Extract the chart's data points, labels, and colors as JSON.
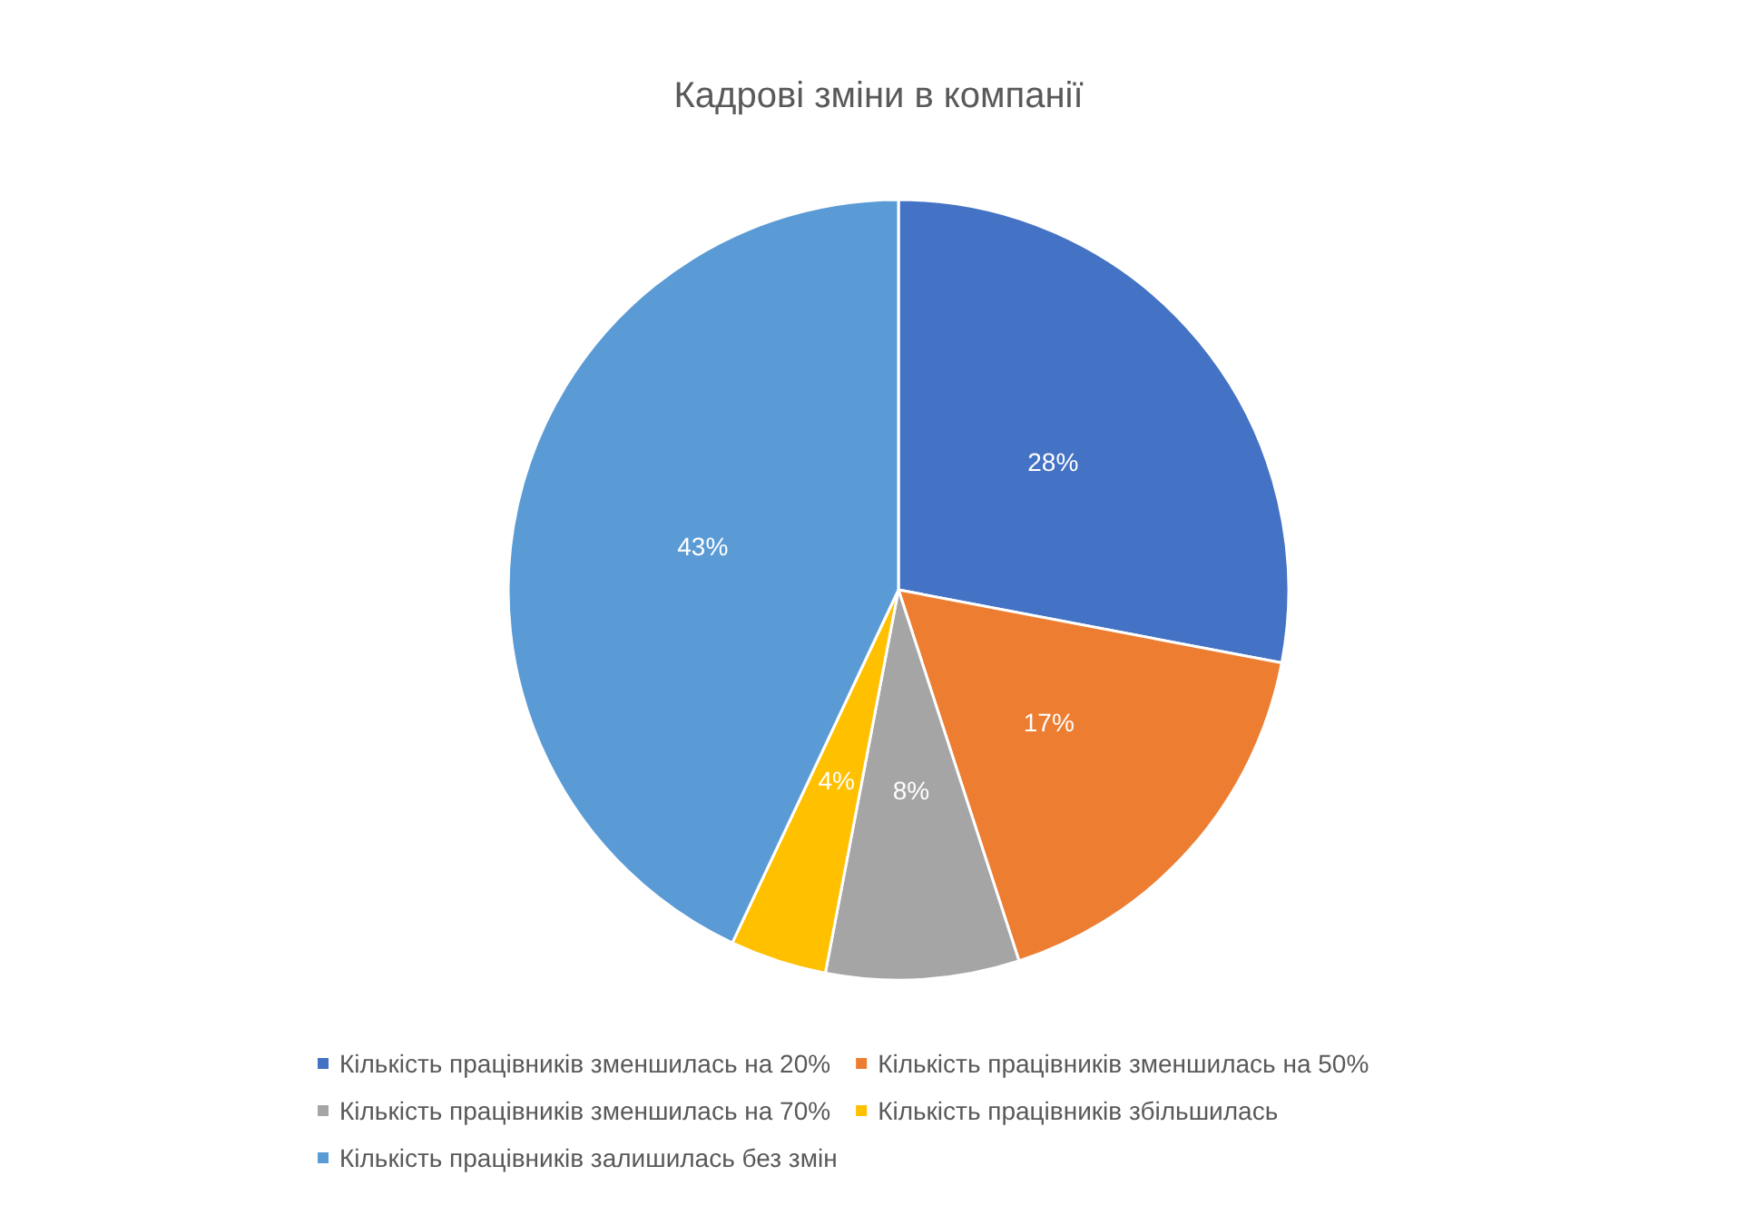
{
  "chart_data": {
    "type": "pie",
    "title": "Кадрові зміни в компанії",
    "categories": [
      "Кількість працівників зменшилась на 20%",
      "Кількість працівників зменшилась на 50%",
      "Кількість працівників зменшилась на 70%",
      "Кількість працівників збільшилась",
      "Кількість працівників залишилась без змін"
    ],
    "values": [
      28,
      17,
      8,
      4,
      43
    ],
    "value_labels": [
      "28%",
      "17%",
      "8%",
      "4%",
      "43%"
    ],
    "colors": [
      "#4472c4",
      "#ed7d31",
      "#a5a5a5",
      "#ffc000",
      "#5b9bd5"
    ],
    "legend": "bottom"
  }
}
